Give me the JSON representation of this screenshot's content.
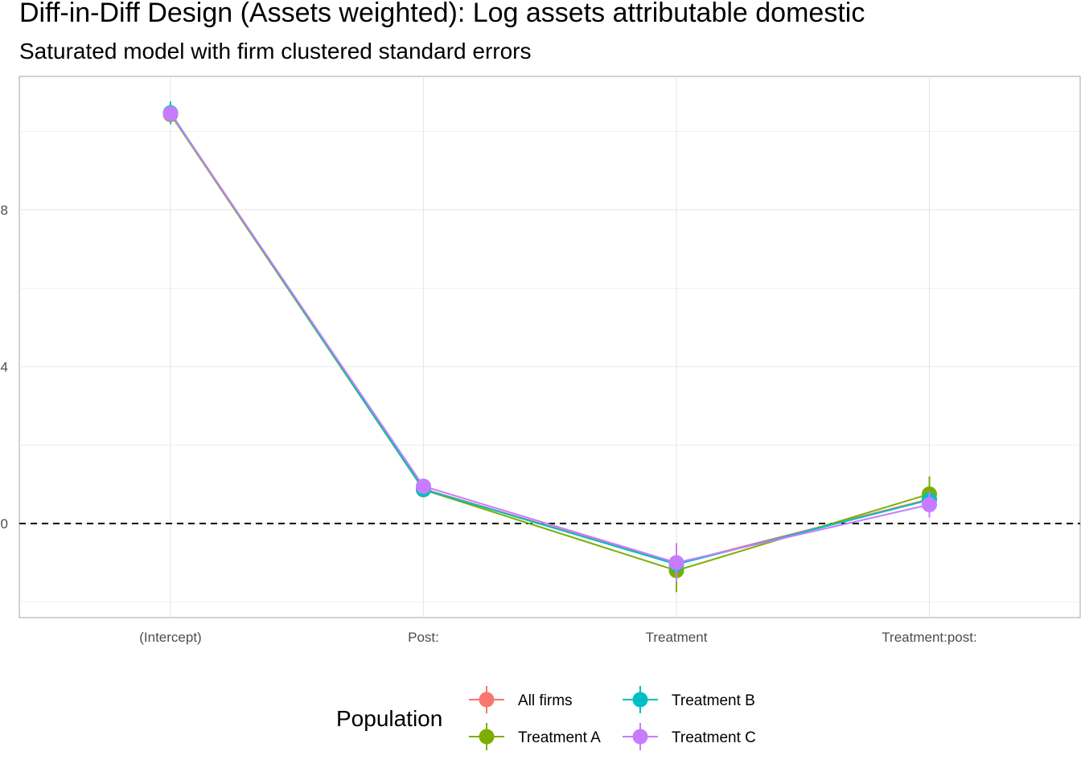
{
  "title": "Diff-in-Diff Design (Assets weighted): Log assets attributable domestic",
  "subtitle": "Saturated model with firm clustered standard errors",
  "chart_data": {
    "type": "line",
    "categories": [
      "(Intercept)",
      "Post:",
      "Treatment",
      "Treatment:post:"
    ],
    "y_ticks": [
      0,
      4,
      8
    ],
    "ylim": [
      -2.4,
      11.4
    ],
    "grid": true,
    "reference_line": 0,
    "legend": {
      "title": "Population",
      "position": "bottom"
    },
    "series": [
      {
        "name": "All firms",
        "color": "#F8766D",
        "values": [
          10.45,
          0.88,
          -1.02,
          0.62
        ],
        "lower": [
          10.3,
          0.8,
          -1.25,
          0.45
        ],
        "upper": [
          10.6,
          0.96,
          -0.79,
          0.79
        ]
      },
      {
        "name": "Treatment A",
        "color": "#7CAE00",
        "values": [
          10.43,
          0.86,
          -1.2,
          0.75
        ],
        "lower": [
          10.2,
          0.76,
          -1.75,
          0.3
        ],
        "upper": [
          10.66,
          0.96,
          -0.65,
          1.2
        ]
      },
      {
        "name": "Treatment B",
        "color": "#00BFC4",
        "values": [
          10.47,
          0.87,
          -1.04,
          0.6
        ],
        "lower": [
          10.18,
          0.77,
          -1.28,
          0.4
        ],
        "upper": [
          10.76,
          0.97,
          -0.8,
          0.8
        ]
      },
      {
        "name": "Treatment C",
        "color": "#C77CFF",
        "values": [
          10.45,
          0.95,
          -1.0,
          0.48
        ],
        "lower": [
          10.3,
          0.85,
          -1.5,
          0.15
        ],
        "upper": [
          10.6,
          1.05,
          -0.5,
          0.81
        ]
      }
    ]
  }
}
